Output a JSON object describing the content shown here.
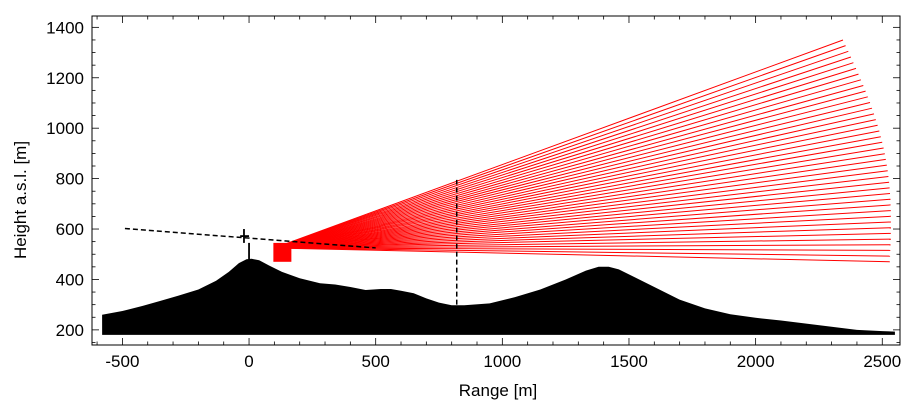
{
  "chart_data": {
    "type": "line",
    "title": "",
    "xlabel": "Range [m]",
    "ylabel": "Height a.s.l. [m]",
    "xlim": [
      -620,
      2570
    ],
    "ylim": [
      140,
      1445
    ],
    "grid": false,
    "x_ticks": [
      -500,
      0,
      500,
      1000,
      1500,
      2000,
      2500
    ],
    "x_tick_labels": [
      "-500",
      "0",
      "500",
      "1000",
      "1500",
      "2000",
      "2500"
    ],
    "y_ticks": [
      200,
      400,
      600,
      800,
      1000,
      1200,
      1400
    ],
    "y_tick_labels": [
      "200",
      "400",
      "600",
      "800",
      "1000",
      "1200",
      "1400"
    ],
    "colors": {
      "terrain": "#000000",
      "beams": "#ff0000",
      "lines": "#000000"
    },
    "series": [
      {
        "kind": "filled-area",
        "x": [
          -580,
          -500,
          -420,
          -350,
          -280,
          -200,
          -130,
          -80,
          -40,
          -10,
          10,
          40,
          80,
          130,
          200,
          280,
          340,
          400,
          460,
          520,
          560,
          600,
          650,
          700,
          750,
          800,
          850,
          950,
          1050,
          1150,
          1250,
          1330,
          1380,
          1420,
          1460,
          1520,
          1600,
          1700,
          1800,
          1900,
          2000,
          2100,
          2200,
          2300,
          2400,
          2500,
          2550
        ],
        "y": [
          260,
          275,
          295,
          315,
          335,
          360,
          395,
          430,
          465,
          480,
          482,
          476,
          455,
          430,
          405,
          385,
          380,
          370,
          358,
          362,
          362,
          355,
          345,
          325,
          308,
          298,
          298,
          305,
          330,
          360,
          400,
          435,
          450,
          450,
          440,
          410,
          370,
          320,
          285,
          262,
          248,
          237,
          225,
          212,
          200,
          195,
          193
        ]
      },
      {
        "kind": "beam-fan",
        "origin": [
          100,
          525
        ],
        "count": 40,
        "end_x": [
          2345,
          2900
        ],
        "end_y": [
          1350,
          470
        ]
      },
      {
        "kind": "dashed-line",
        "x": [
          -490,
          500
        ],
        "y": [
          602,
          525
        ]
      },
      {
        "kind": "dashed-line",
        "x": [
          820,
          820
        ],
        "y": [
          300,
          795
        ]
      },
      {
        "kind": "marker",
        "x": [
          0,
          -20,
          -20,
          0,
          0
        ],
        "y": [
          600,
          600,
          545,
          545,
          480
        ]
      }
    ]
  }
}
